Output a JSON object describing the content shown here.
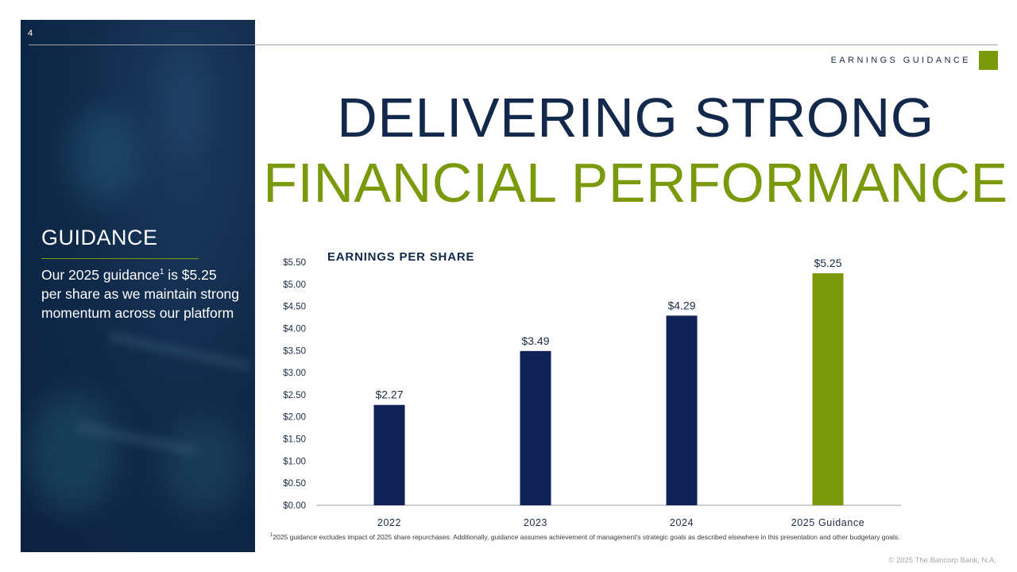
{
  "page": {
    "number": "4",
    "section_label": "EARNINGS GUIDANCE",
    "copyright": "© 2025 The Bancorp Bank, N.A."
  },
  "title": {
    "line1": "DELIVERING STRONG",
    "line2": "FINANCIAL PERFORMANCE"
  },
  "sidebar": {
    "heading": "GUIDANCE",
    "body_before": "Our 2025 guidance",
    "body_sup": "1",
    "body_after": " is $5.25 per share as we maintain strong momentum across our platform"
  },
  "footnote": {
    "marker": "1",
    "text": "2025 guidance excludes impact of 2025 share repurchases.  Additionally, guidance assumes achievement of management's strategic goals as described elsewhere in this presentation and other budgetary goals."
  },
  "colors": {
    "navy": "#13294b",
    "bar_navy": "#0f2157",
    "green": "#7a9a0b",
    "panel": "#0c2240"
  },
  "chart_data": {
    "type": "bar",
    "title": "EARNINGS PER SHARE",
    "categories": [
      "2022",
      "2023",
      "2024",
      "2025 Guidance"
    ],
    "values": [
      2.27,
      3.49,
      4.29,
      5.25
    ],
    "value_labels": [
      "$2.27",
      "$3.49",
      "$4.29",
      "$5.25"
    ],
    "bar_colors": [
      "#0f2157",
      "#0f2157",
      "#0f2157",
      "#7a9a0b"
    ],
    "ylim": [
      0,
      5.5
    ],
    "yticks": [
      "$0.00",
      "$0.50",
      "$1.00",
      "$1.50",
      "$2.00",
      "$2.50",
      "$3.00",
      "$3.50",
      "$4.00",
      "$4.50",
      "$5.00",
      "$5.50"
    ],
    "grid": false,
    "legend": "none"
  }
}
